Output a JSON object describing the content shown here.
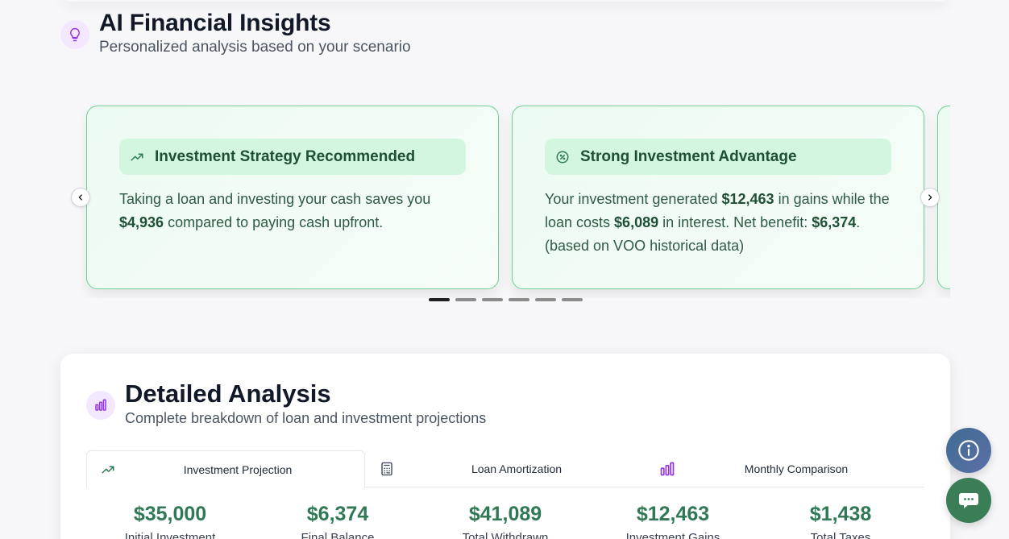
{
  "insights": {
    "title": "AI Financial Insights",
    "subtitle": "Personalized analysis based on your scenario",
    "icon": "lightbulb-icon",
    "cards": [
      {
        "icon": "trending-up-icon",
        "title": "Investment Strategy Recommended",
        "body_pre": "Taking a loan and investing your cash saves you ",
        "body_b1": "$4,936",
        "body_mid": " compared to paying cash upfront."
      },
      {
        "icon": "percent-icon",
        "title": "Strong Investment Advantage",
        "body_pre": "Your investment generated ",
        "body_b1": "$12,463",
        "body_mid": " in gains while the loan costs ",
        "body_b2": "$6,089",
        "body_mid2": " in interest. Net benefit: ",
        "body_b3": "$6,374",
        "body_post": ". (based on VOO historical data)"
      }
    ],
    "dots_total": 6,
    "dots_active": 1
  },
  "analysis": {
    "title": "Detailed Analysis",
    "subtitle": "Complete breakdown of loan and investment projections",
    "tabs": [
      {
        "label": "Investment Projection",
        "icon": "trending-up-icon",
        "active": true
      },
      {
        "label": "Loan Amortization",
        "icon": "calculator-icon",
        "active": false
      },
      {
        "label": "Monthly Comparison",
        "icon": "bar-chart-icon",
        "active": false
      }
    ],
    "stats": [
      {
        "value": "$35,000",
        "label": "Initial Investment"
      },
      {
        "value": "$6,374",
        "label": "Final Balance"
      },
      {
        "value": "$41,089",
        "label": "Total Withdrawn"
      },
      {
        "value": "$12,463",
        "label": "Investment Gains"
      },
      {
        "value": "$1,438",
        "label": "Total Taxes"
      }
    ]
  },
  "colors": {
    "accent_green": "#2f7a54",
    "card_border": "#6dcf93",
    "purple_icon": "#9333ea",
    "info_fab": "#4a6b9c",
    "chat_fab": "#3a7d57"
  }
}
